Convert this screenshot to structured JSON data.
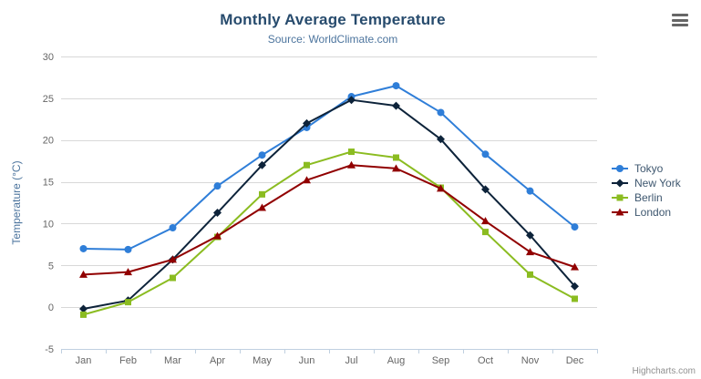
{
  "header": {
    "title": "Monthly Average Temperature",
    "subtitle": "Source: WorldClimate.com"
  },
  "menu": {
    "tooltip": "chart context menu"
  },
  "credits": {
    "label": "Highcharts.com"
  },
  "colors": {
    "title": "#274b6d",
    "subtitle": "#4d759e",
    "axis_title": "#4d759e",
    "axis_labels": "#666666",
    "gridline": "#d8d8d8",
    "axis_line": "#c0d0e0",
    "legend_text": "#3e576f",
    "menu_icon": "#666666"
  },
  "chart_data": {
    "type": "line",
    "title": "Monthly Average Temperature",
    "subtitle": "Source: WorldClimate.com",
    "categories": [
      "Jan",
      "Feb",
      "Mar",
      "Apr",
      "May",
      "Jun",
      "Jul",
      "Aug",
      "Sep",
      "Oct",
      "Nov",
      "Dec"
    ],
    "xlabel": "",
    "ylabel": "Temperature (°C)",
    "ylim": [
      -5,
      30
    ],
    "ytick_interval": 5,
    "yticks": [
      -5,
      0,
      5,
      10,
      15,
      20,
      25,
      30
    ],
    "grid": true,
    "legend_position": "right",
    "series": [
      {
        "name": "Tokyo",
        "color": "#2f7ed8",
        "marker": "circle",
        "values": [
          7.0,
          6.9,
          9.5,
          14.5,
          18.2,
          21.5,
          25.2,
          26.5,
          23.3,
          18.3,
          13.9,
          9.6
        ]
      },
      {
        "name": "New York",
        "color": "#0d233a",
        "marker": "diamond",
        "values": [
          -0.2,
          0.8,
          5.7,
          11.3,
          17.0,
          22.0,
          24.8,
          24.1,
          20.1,
          14.1,
          8.6,
          2.5
        ]
      },
      {
        "name": "Berlin",
        "color": "#8bbc21",
        "marker": "square",
        "values": [
          -0.9,
          0.6,
          3.5,
          8.4,
          13.5,
          17.0,
          18.6,
          17.9,
          14.3,
          9.0,
          3.9,
          1.0
        ]
      },
      {
        "name": "London",
        "color": "#910000",
        "marker": "triangle",
        "values": [
          3.9,
          4.2,
          5.7,
          8.5,
          11.9,
          15.2,
          17.0,
          16.6,
          14.2,
          10.3,
          6.6,
          4.8
        ]
      }
    ]
  }
}
